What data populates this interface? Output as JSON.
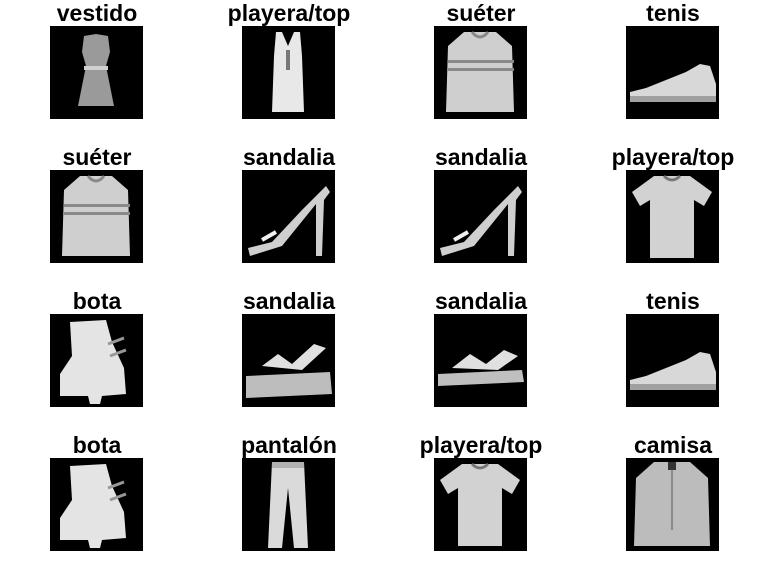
{
  "grid": {
    "columns": 4,
    "rows": 4,
    "items": [
      {
        "label": "vestido",
        "icon": "dress-icon"
      },
      {
        "label": "playera/top",
        "icon": "tank-top-icon"
      },
      {
        "label": "suéter",
        "icon": "sweater-icon"
      },
      {
        "label": "tenis",
        "icon": "sneaker-icon"
      },
      {
        "label": "suéter",
        "icon": "sweater-icon"
      },
      {
        "label": "sandalia",
        "icon": "high-heel-sandal-icon"
      },
      {
        "label": "sandalia",
        "icon": "high-heel-sandal-icon"
      },
      {
        "label": "playera/top",
        "icon": "tshirt-icon"
      },
      {
        "label": "bota",
        "icon": "ankle-boot-icon"
      },
      {
        "label": "sandalia",
        "icon": "platform-sandal-icon"
      },
      {
        "label": "sandalia",
        "icon": "flat-sandal-icon"
      },
      {
        "label": "tenis",
        "icon": "sneaker-icon"
      },
      {
        "label": "bota",
        "icon": "ankle-boot-icon"
      },
      {
        "label": "pantalón",
        "icon": "trousers-icon"
      },
      {
        "label": "playera/top",
        "icon": "tshirt-icon"
      },
      {
        "label": "camisa",
        "icon": "shirt-icon"
      }
    ]
  },
  "colors": {
    "background": "#ffffff",
    "thumb_background": "#000000",
    "label": "#000000"
  }
}
